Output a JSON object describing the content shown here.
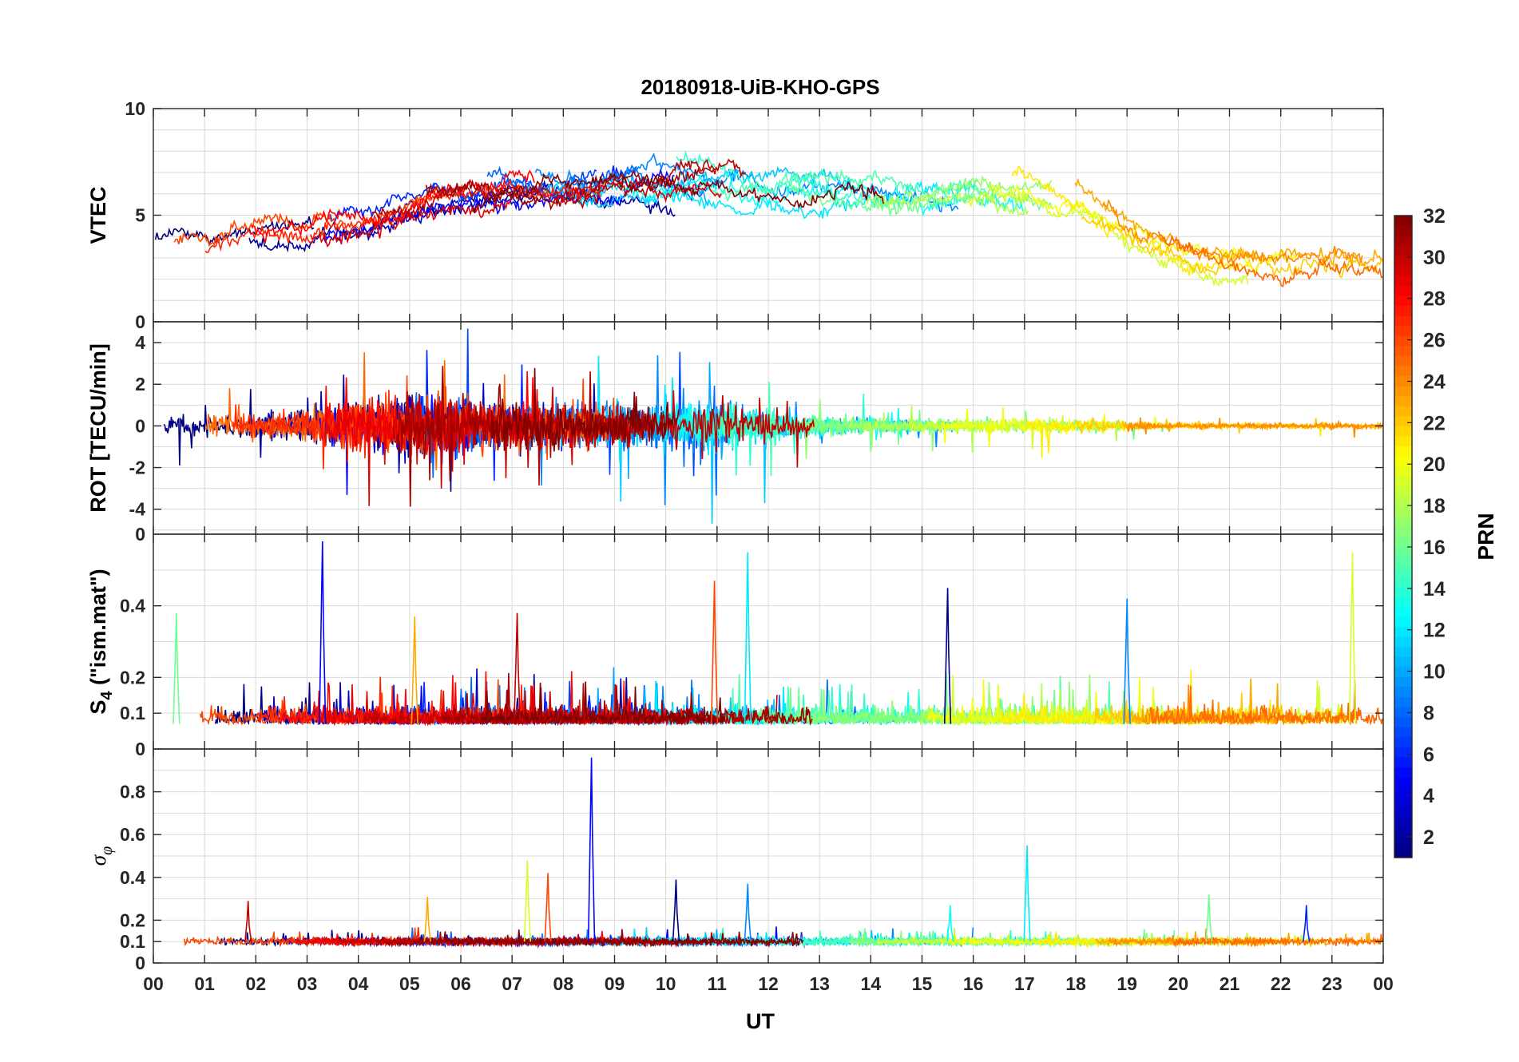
{
  "chart_data": {
    "title": "20180918-UiB-KHO-GPS",
    "type": "line",
    "xlabel": "UT",
    "x_ticks": [
      "00",
      "01",
      "02",
      "03",
      "04",
      "05",
      "06",
      "07",
      "08",
      "09",
      "10",
      "11",
      "12",
      "13",
      "14",
      "15",
      "16",
      "17",
      "18",
      "19",
      "20",
      "21",
      "22",
      "23",
      "00"
    ],
    "xlim": [
      0,
      24
    ],
    "grid": true,
    "panels": [
      {
        "id": "vtec",
        "ylabel": "VTEC",
        "ylim": [
          0,
          10
        ],
        "y_ticks": [
          "0",
          "5",
          "10"
        ],
        "y_tick_values": [
          0,
          5,
          10
        ],
        "minor_grid": [
          1,
          2,
          3,
          4,
          6,
          7,
          8,
          9
        ]
      },
      {
        "id": "rot",
        "ylabel": "ROT [TECU/min]",
        "ylim": [
          -5.2,
          5
        ],
        "y_ticks": [
          "-4",
          "-2",
          "0",
          "2",
          "4"
        ],
        "y_tick_values": [
          -4,
          -2,
          0,
          2,
          4
        ],
        "minor_grid": [
          -5,
          -3,
          -1,
          1,
          3
        ]
      },
      {
        "id": "s4",
        "ylabel": "S4 (\"ism.mat\")",
        "ylabel_main": "S",
        "ylabel_sub": "4",
        "ylabel_rest": " (\"ism.mat\")",
        "ylim": [
          0,
          0.6
        ],
        "y_ticks": [
          "0",
          "0.1",
          "0.2",
          "0.4"
        ],
        "y_tick_values": [
          0,
          0.1,
          0.2,
          0.4
        ],
        "y_tick_extra": "0",
        "minor_grid": [
          0.3,
          0.5
        ]
      },
      {
        "id": "sigma",
        "ylabel": "σφ",
        "ylabel_main": "σ",
        "ylabel_sub": "φ",
        "ylim": [
          0,
          1
        ],
        "y_ticks": [
          "0",
          "0.1",
          "0.2",
          "0.4",
          "0.6",
          "0.8"
        ],
        "y_tick_values": [
          0,
          0.1,
          0.2,
          0.4,
          0.6,
          0.8
        ],
        "minor_grid": [
          0.3,
          0.5,
          0.7,
          0.9
        ]
      }
    ],
    "colorbar": {
      "label": "PRN",
      "range": [
        1,
        32
      ],
      "ticks": [
        "2",
        "4",
        "6",
        "8",
        "10",
        "12",
        "14",
        "16",
        "18",
        "20",
        "22",
        "24",
        "26",
        "28",
        "30",
        "32"
      ],
      "tick_values": [
        2,
        4,
        6,
        8,
        10,
        12,
        14,
        16,
        18,
        20,
        22,
        24,
        26,
        28,
        30,
        32
      ],
      "colormap": "jet",
      "colors": [
        "#00007f",
        "#0000ff",
        "#007fff",
        "#00ffff",
        "#7fff7f",
        "#ffff00",
        "#ff7f00",
        "#ff0000",
        "#7f0000"
      ]
    },
    "series_prn": [
      1,
      2,
      3,
      5,
      6,
      7,
      8,
      9,
      10,
      11,
      12,
      13,
      14,
      15,
      16,
      17,
      18,
      19,
      20,
      21,
      22,
      23,
      24,
      25,
      26,
      27,
      28,
      29,
      30,
      31,
      32
    ],
    "panel_summary": {
      "vtec": {
        "baseline_by_hour": [
          3.6,
          4.2,
          4.3,
          4.4,
          4.8,
          5.4,
          5.8,
          6.2,
          6.3,
          6.6,
          6.6,
          6.5,
          6.1,
          6.0,
          5.9,
          6.2,
          6.3,
          6.2,
          5.4,
          4.2,
          3.4,
          3.0,
          2.9,
          3.0,
          3.1
        ],
        "spread": 1.0
      },
      "rot": {
        "amplitude_by_hour": [
          0.5,
          0.5,
          0.5,
          0.7,
          1.1,
          1.3,
          1.1,
          0.9,
          0.9,
          0.9,
          0.9,
          1.0,
          0.7,
          0.4,
          0.35,
          0.3,
          0.3,
          0.3,
          0.3,
          0.2,
          0.12,
          0.12,
          0.12,
          0.12,
          0.12
        ]
      },
      "s4": {
        "baseline": 0.07,
        "peaks": [
          [
            3.3,
            0.58
          ],
          [
            11.6,
            0.55
          ],
          [
            23.4,
            0.55
          ],
          [
            10.95,
            0.47
          ],
          [
            15.5,
            0.45
          ],
          [
            19.0,
            0.42
          ],
          [
            0.45,
            0.38
          ],
          [
            5.1,
            0.37
          ],
          [
            7.1,
            0.38
          ]
        ]
      },
      "sigma": {
        "baseline": 0.1,
        "peaks": [
          [
            8.55,
            0.96
          ],
          [
            17.05,
            0.55
          ],
          [
            7.3,
            0.48
          ],
          [
            7.7,
            0.42
          ],
          [
            10.2,
            0.39
          ],
          [
            11.6,
            0.37
          ],
          [
            20.6,
            0.32
          ],
          [
            5.35,
            0.31
          ],
          [
            1.85,
            0.29
          ],
          [
            22.5,
            0.27
          ],
          [
            15.55,
            0.27
          ]
        ]
      }
    }
  }
}
